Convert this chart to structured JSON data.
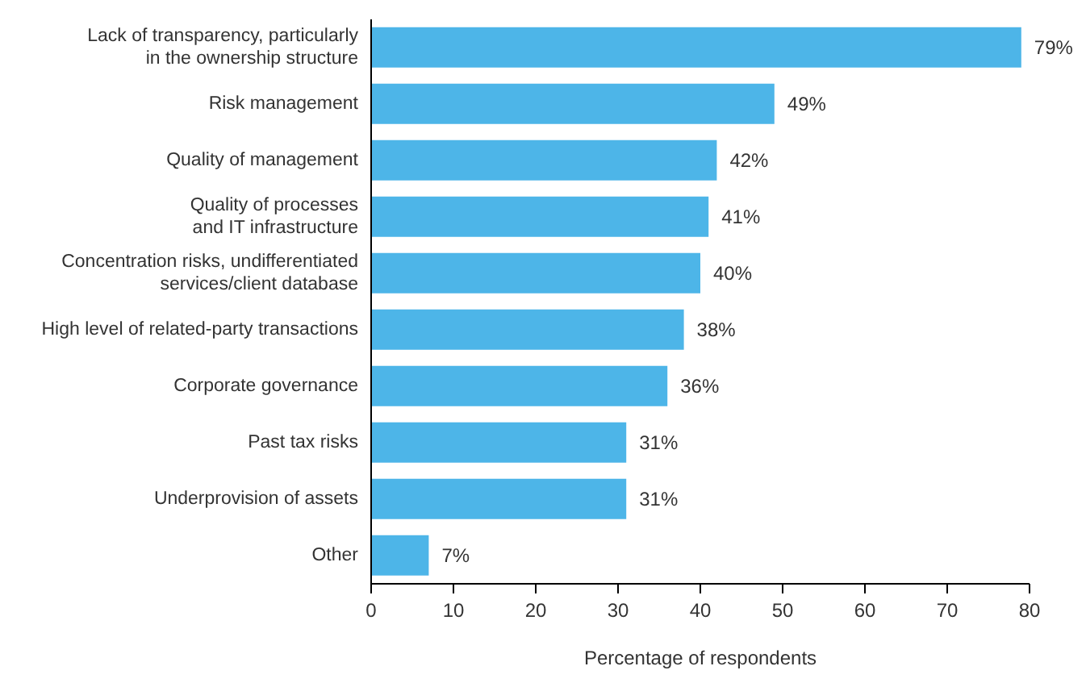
{
  "chart_data": {
    "type": "bar",
    "orientation": "horizontal",
    "categories": [
      "Lack of transparency, particularly\nin the ownership structure",
      "Risk management",
      "Quality of management",
      "Quality of processes\nand IT infrastructure",
      "Concentration risks, undifferentiated\nservices/client database",
      "High level of related-party transactions",
      "Corporate governance",
      "Past tax risks",
      "Underprovision of assets",
      "Other"
    ],
    "values": [
      79,
      49,
      42,
      41,
      40,
      38,
      36,
      31,
      31,
      7
    ],
    "value_labels": [
      "79%",
      "49%",
      "42%",
      "41%",
      "40%",
      "38%",
      "36%",
      "31%",
      "31%",
      "7%"
    ],
    "color": "#4db5e8",
    "xlim": [
      0,
      80
    ],
    "xticks": [
      0,
      10,
      20,
      30,
      40,
      50,
      60,
      70,
      80
    ],
    "xlabel": "Percentage of respondents",
    "grid": false,
    "legend": false
  }
}
